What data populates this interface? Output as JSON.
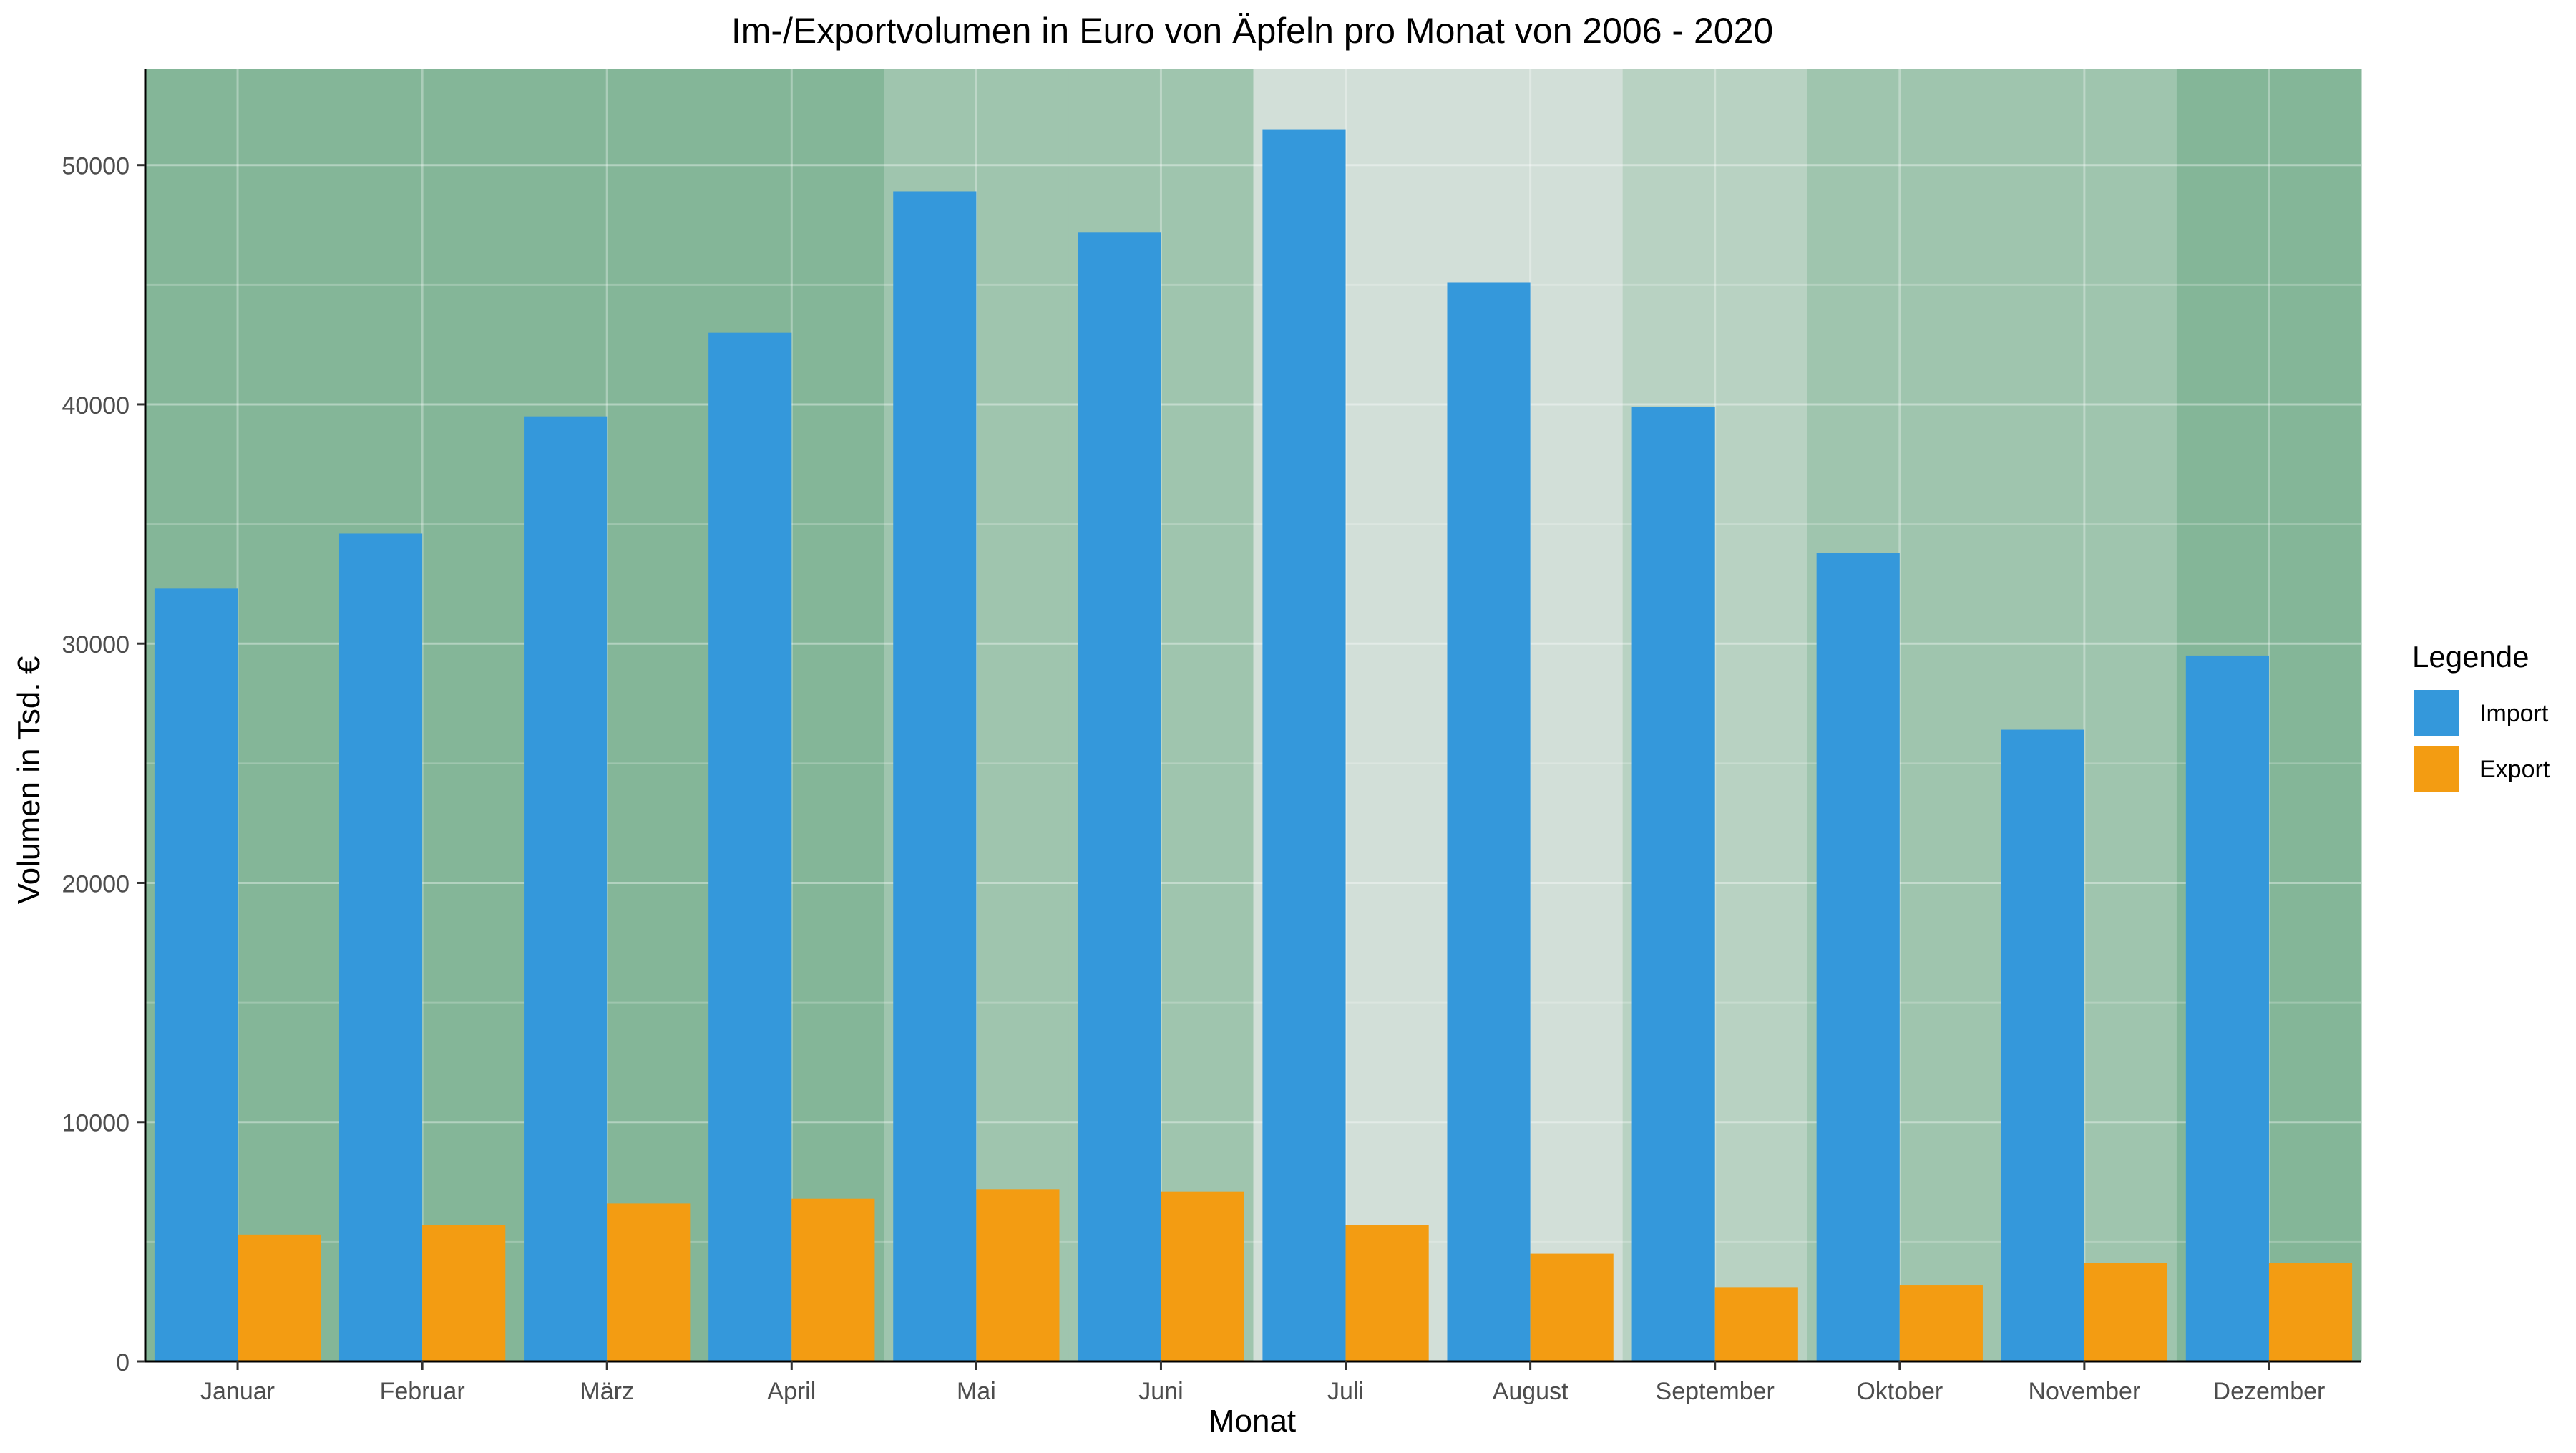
{
  "chart_data": {
    "type": "bar",
    "title": "Im-/Exportvolumen in Euro von Äpfeln pro Monat von 2006 - 2020",
    "xlabel": "Monat",
    "ylabel": "Volumen in Tsd. €",
    "categories": [
      "Januar",
      "Februar",
      "März",
      "April",
      "Mai",
      "Juni",
      "Juli",
      "August",
      "September",
      "Oktober",
      "November",
      "Dezember"
    ],
    "series": [
      {
        "name": "Import",
        "color": "#3498db",
        "values": [
          32300,
          34600,
          39500,
          43000,
          48900,
          47200,
          51500,
          45100,
          39900,
          33800,
          26400,
          29500
        ]
      },
      {
        "name": "Export",
        "color": "#f39c12",
        "values": [
          5300,
          5700,
          6600,
          6800,
          7200,
          7100,
          5700,
          4500,
          3100,
          3200,
          4100,
          4100
        ]
      }
    ],
    "ylim": [
      0,
      54000
    ],
    "yticks": [
      0,
      10000,
      20000,
      30000,
      40000,
      50000
    ],
    "grid": true,
    "legend": {
      "title": "Legende",
      "position": "right"
    },
    "month_background_colors": [
      "#84b698",
      "#84b698",
      "#84b698",
      "#84b698",
      "#9fc5ae",
      "#9fc5ae",
      "#d2dfd8",
      "#d2dfd8",
      "#b8d2c2",
      "#9fc5ae",
      "#9fc5ae",
      "#84b698"
    ]
  }
}
